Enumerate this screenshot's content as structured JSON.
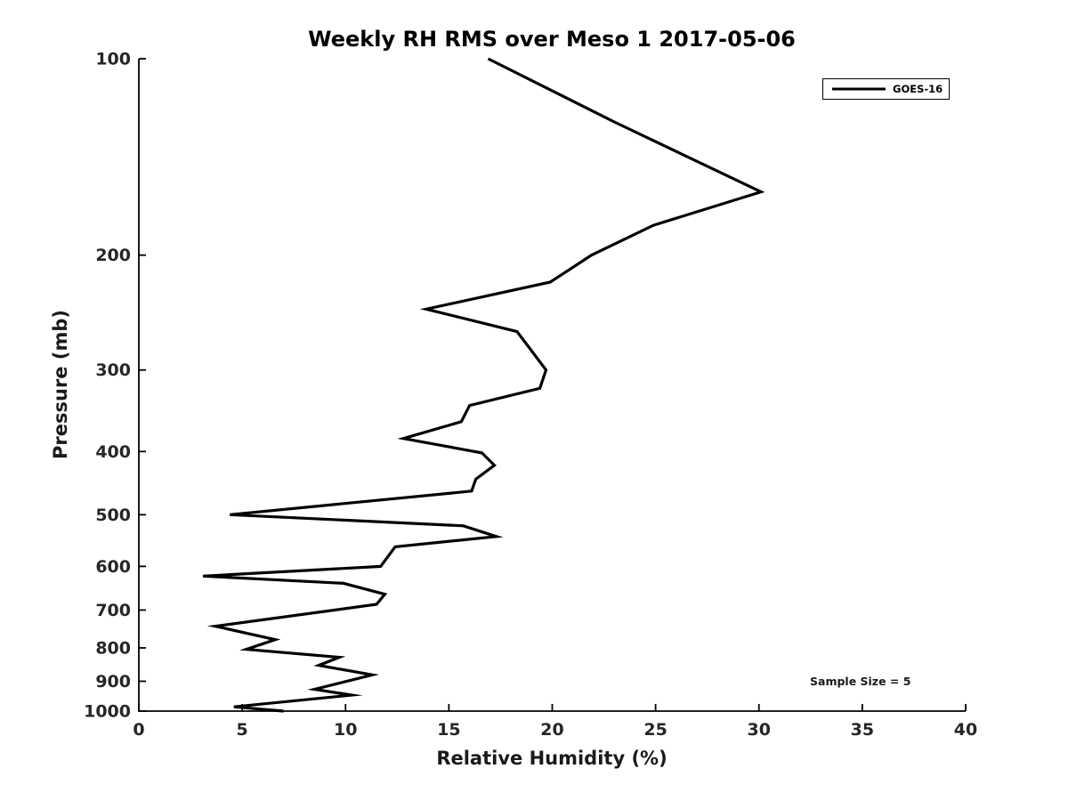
{
  "figure": {
    "title": "Weekly RH RMS over Meso 1 2017-05-06",
    "xlabel": "Relative Humidity (%)",
    "ylabel": "Pressure (mb)",
    "annotation": "Sample Size = 5",
    "legend": {
      "position": "top-right",
      "entries": [
        {
          "label": "GOES-16",
          "line_color": "#000000"
        }
      ]
    },
    "colors": {
      "background": "#ffffff",
      "axis": "#000000",
      "curve": "#000000",
      "tick_label": "#262626",
      "title": "#000000"
    }
  },
  "chart_data": {
    "type": "line",
    "title": "Weekly RH RMS over Meso 1 2017-05-06",
    "xlabel": "Relative Humidity (%)",
    "ylabel": "Pressure (mb)",
    "xlim": [
      0,
      40
    ],
    "ylim": [
      100,
      1000
    ],
    "yscale": "log",
    "y_axis_inverted": true,
    "grid": false,
    "legend_position": "top-right",
    "xticks": [
      0,
      5,
      10,
      15,
      20,
      25,
      30,
      35,
      40
    ],
    "yticks": [
      100,
      200,
      300,
      400,
      500,
      600,
      700,
      800,
      900,
      1000
    ],
    "annotations": [
      {
        "text": "Sample Size = 5",
        "x_rh": 32.5,
        "y_pressure_mb": 900
      }
    ],
    "series": [
      {
        "name": "GOES-16",
        "pressure_mb": [
          100,
          125,
          160,
          180,
          200,
          220,
          242,
          262,
          300,
          320,
          340,
          360,
          382,
          402,
          420,
          441,
          460,
          500,
          520,
          540,
          560,
          600,
          621,
          637,
          662,
          686,
          741,
          777,
          804,
          827,
          851,
          880,
          926,
          945,
          985,
          1000
        ],
        "rh_percent": [
          16.9,
          23.0,
          30.1,
          24.9,
          21.9,
          19.9,
          13.9,
          18.3,
          19.7,
          19.4,
          16.0,
          15.6,
          12.8,
          16.6,
          17.2,
          16.3,
          16.1,
          4.4,
          15.7,
          17.3,
          12.4,
          11.7,
          3.1,
          9.9,
          11.9,
          11.5,
          3.7,
          6.6,
          5.2,
          9.7,
          8.7,
          11.3,
          8.5,
          10.3,
          4.6,
          7.0
        ]
      }
    ]
  }
}
